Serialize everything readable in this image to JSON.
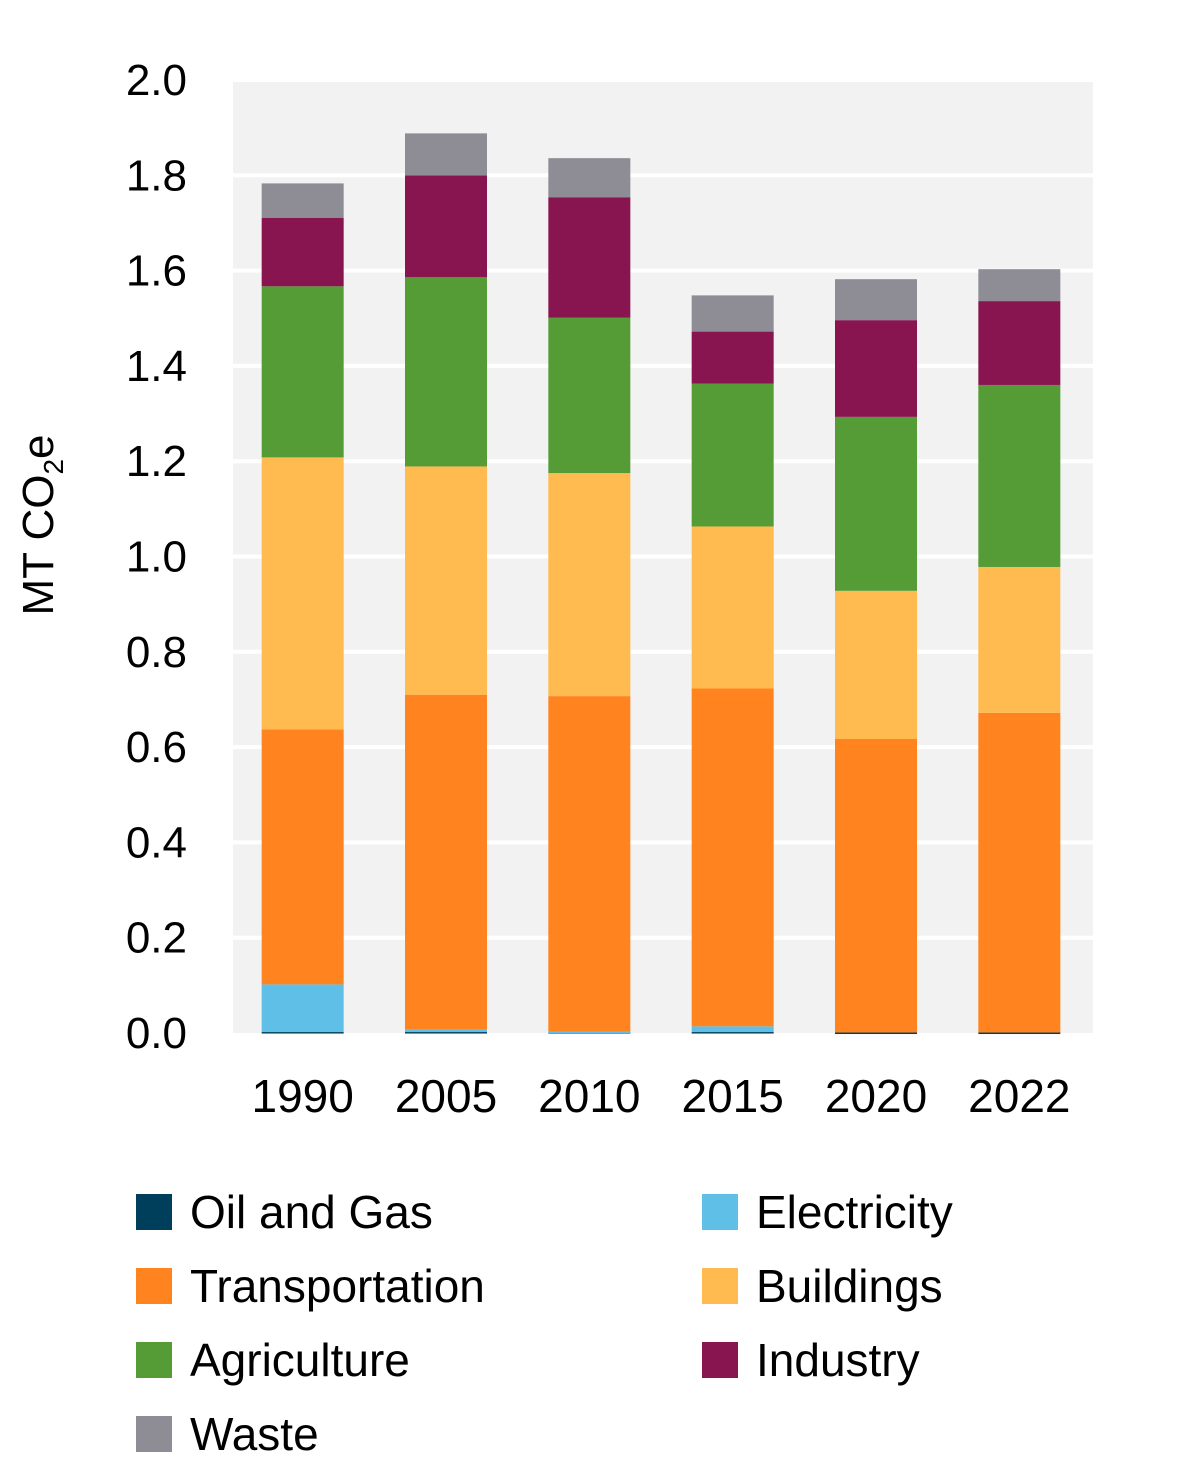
{
  "chart_data": {
    "type": "bar",
    "stacked": true,
    "categories": [
      "1990",
      "2005",
      "2010",
      "2015",
      "2020",
      "2022"
    ],
    "ylabel": {
      "main": "MT CO",
      "sub": "2",
      "suffix": "e"
    },
    "ylim": [
      0,
      2.0
    ],
    "yticks": [
      "0.0",
      "0.2",
      "0.4",
      "0.6",
      "0.8",
      "1.0",
      "1.2",
      "1.4",
      "1.6",
      "1.8",
      "2.0"
    ],
    "grid": true,
    "legend_position": "bottom",
    "series": [
      {
        "name": "Oil and Gas",
        "color": "#003f5c",
        "values": [
          0.002,
          0.002,
          0.002,
          0.002,
          0.001,
          0.001
        ]
      },
      {
        "name": "Electricity",
        "color": "#5fbfe6",
        "values": [
          0.1,
          0.005,
          0.001,
          0.012,
          0.0,
          0.0
        ]
      },
      {
        "name": "Transportation",
        "color": "#ff8420",
        "values": [
          0.535,
          0.703,
          0.704,
          0.709,
          0.616,
          0.671
        ]
      },
      {
        "name": "Buildings",
        "color": "#ffbb4f",
        "values": [
          0.571,
          0.479,
          0.468,
          0.34,
          0.311,
          0.306
        ]
      },
      {
        "name": "Agriculture",
        "color": "#559c37",
        "values": [
          0.359,
          0.397,
          0.326,
          0.3,
          0.365,
          0.382
        ]
      },
      {
        "name": "Industry",
        "color": "#88154f",
        "values": [
          0.144,
          0.214,
          0.253,
          0.109,
          0.203,
          0.176
        ]
      },
      {
        "name": "Waste",
        "color": "#8e8d96",
        "values": [
          0.072,
          0.088,
          0.082,
          0.076,
          0.086,
          0.067
        ]
      }
    ]
  }
}
